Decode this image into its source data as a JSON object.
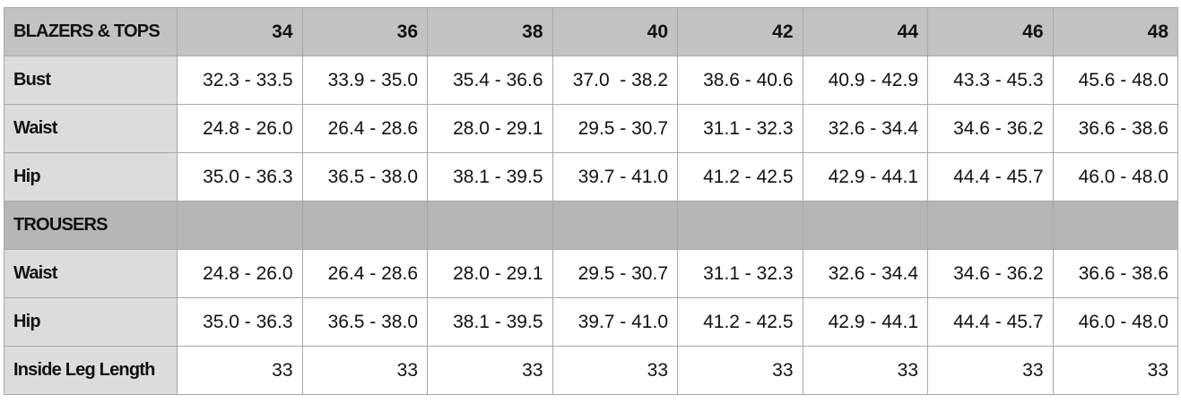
{
  "sizes": [
    "34",
    "36",
    "38",
    "40",
    "42",
    "44",
    "46",
    "48"
  ],
  "sections": [
    {
      "title": "BLAZERS & TOPS",
      "rows": [
        {
          "label": "Bust",
          "values": [
            "32.3 - 33.5",
            "33.9 - 35.0",
            "35.4 - 36.6",
            "37.0  - 38.2",
            "38.6 - 40.6",
            "40.9 - 42.9",
            "43.3 - 45.3",
            "45.6 - 48.0"
          ]
        },
        {
          "label": "Waist",
          "values": [
            "24.8 - 26.0",
            "26.4 - 28.6",
            "28.0 - 29.1",
            "29.5 - 30.7",
            "31.1 - 32.3",
            "32.6 - 34.4",
            "34.6 - 36.2",
            "36.6 - 38.6"
          ]
        },
        {
          "label": "Hip",
          "values": [
            "35.0 - 36.3",
            "36.5 - 38.0",
            "38.1 - 39.5",
            "39.7 - 41.0",
            "41.2 - 42.5",
            "42.9 - 44.1",
            "44.4 - 45.7",
            "46.0 - 48.0"
          ]
        }
      ]
    },
    {
      "title": "TROUSERS",
      "rows": [
        {
          "label": "Waist",
          "values": [
            "24.8 - 26.0",
            "26.4 - 28.6",
            "28.0 - 29.1",
            "29.5 - 30.7",
            "31.1 - 32.3",
            "32.6 - 34.4",
            "34.6 - 36.2",
            "36.6 - 38.6"
          ]
        },
        {
          "label": "Hip",
          "values": [
            "35.0 - 36.3",
            "36.5 - 38.0",
            "38.1 - 39.5",
            "39.7 - 41.0",
            "41.2 - 42.5",
            "42.9 - 44.1",
            "44.4 - 45.7",
            "46.0 - 48.0"
          ]
        },
        {
          "label": "Inside Leg Length",
          "values": [
            "33",
            "33",
            "33",
            "33",
            "33",
            "33",
            "33",
            "33"
          ]
        }
      ]
    }
  ],
  "colors": {
    "header_bg": "#c2c2c2",
    "label_bg": "#dcdcdc",
    "section_bg": "#b6b6b6",
    "border": "#a8a8a8"
  }
}
